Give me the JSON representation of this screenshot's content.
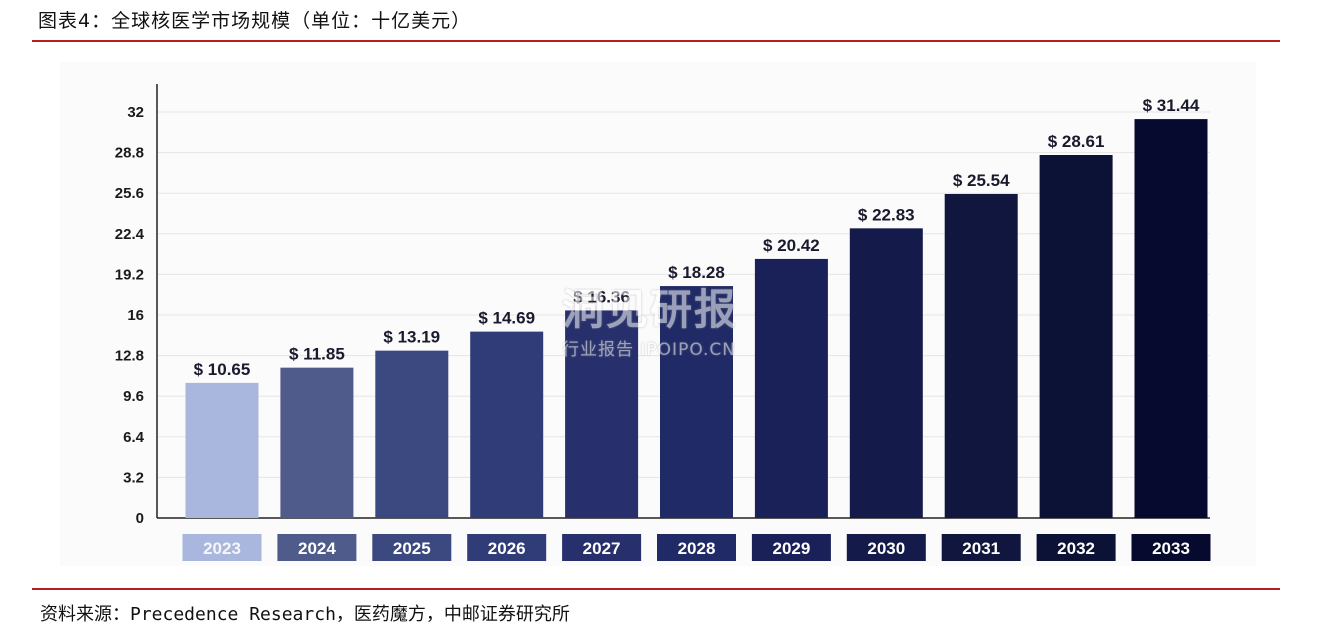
{
  "header": {
    "title": "图表4：全球核医学市场规模（单位：十亿美元）"
  },
  "footer": {
    "source": "资料来源：Precedence Research，医药魔方，中邮证券研究所"
  },
  "watermark": {
    "main": "洞见研报",
    "sub": "行业报告 IPOIPO.CN"
  },
  "chart_data": {
    "type": "bar",
    "title": "",
    "xlabel": "",
    "ylabel": "",
    "categories": [
      "2023",
      "2024",
      "2025",
      "2026",
      "2027",
      "2028",
      "2029",
      "2030",
      "2031",
      "2032",
      "2033"
    ],
    "values": [
      10.65,
      11.85,
      13.19,
      14.69,
      16.36,
      18.28,
      20.42,
      22.83,
      25.54,
      28.61,
      31.44
    ],
    "value_labels": [
      "$ 10.65",
      "$ 11.85",
      "$ 13.19",
      "$ 14.69",
      "$ 16.36",
      "$ 18.28",
      "$ 20.42",
      "$ 22.83",
      "$ 25.54",
      "$ 28.61",
      "$ 31.44"
    ],
    "y_ticks": [
      "0",
      "3.2",
      "6.4",
      "9.6",
      "12.8",
      "16",
      "19.2",
      "22.4",
      "25.6",
      "28.8",
      "32"
    ],
    "ylim": [
      0,
      32
    ],
    "grid": true,
    "legend": "none",
    "colors": [
      "#a9b6de",
      "#4f5b8a",
      "#3c4880",
      "#2f3c78",
      "#27306c",
      "#202a66",
      "#1a2158",
      "#141a4a",
      "#10163e",
      "#0c1136",
      "#060a2e"
    ]
  }
}
